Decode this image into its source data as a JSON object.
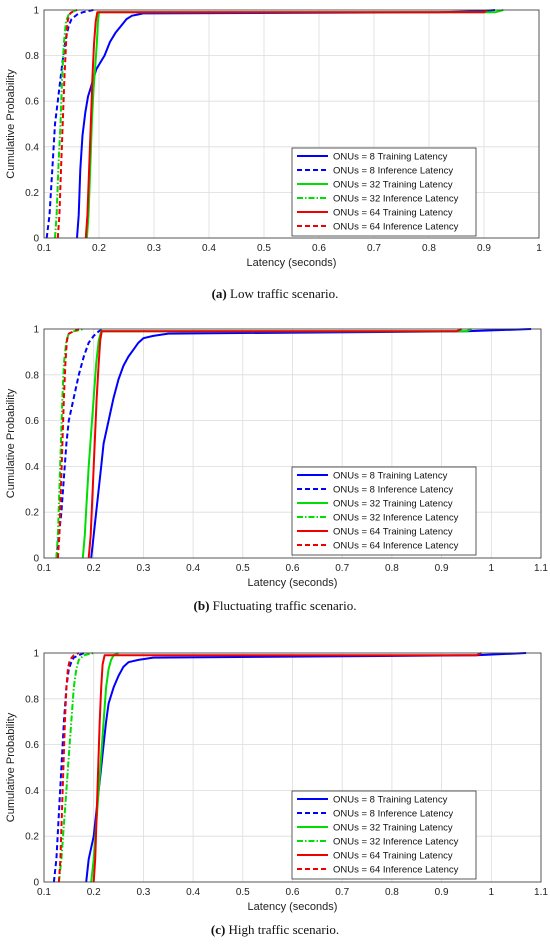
{
  "chart_data": [
    {
      "type": "line",
      "xlabel": "Latency (seconds)",
      "ylabel": "Cumulative Probability",
      "xlim": [
        0.1,
        1
      ],
      "ylim": [
        0,
        1
      ],
      "xticks": [
        "0.1",
        "0.2",
        "0.3",
        "0.4",
        "0.5",
        "0.6",
        "0.7",
        "0.8",
        "0.9",
        "1"
      ],
      "yticks": [
        "0",
        "0.2",
        "0.4",
        "0.6",
        "0.8",
        "1"
      ],
      "grid": true,
      "legend_position": "bottom-right",
      "caption_label": "(a)",
      "caption_text": " Low traffic scenario.",
      "series": [
        {
          "name": "ONUs = 8 Training Latency",
          "color": "#0000ff",
          "dash": "solid",
          "points": [
            [
              0.16,
              0
            ],
            [
              0.163,
              0.1
            ],
            [
              0.166,
              0.3
            ],
            [
              0.17,
              0.45
            ],
            [
              0.175,
              0.55
            ],
            [
              0.18,
              0.62
            ],
            [
              0.185,
              0.66
            ],
            [
              0.19,
              0.7
            ],
            [
              0.195,
              0.74
            ],
            [
              0.2,
              0.76
            ],
            [
              0.21,
              0.8
            ],
            [
              0.22,
              0.86
            ],
            [
              0.23,
              0.9
            ],
            [
              0.24,
              0.93
            ],
            [
              0.25,
              0.96
            ],
            [
              0.26,
              0.975
            ],
            [
              0.27,
              0.98
            ],
            [
              0.28,
              0.985
            ],
            [
              0.82,
              0.99
            ],
            [
              0.9,
              0.995
            ],
            [
              0.92,
              1
            ]
          ]
        },
        {
          "name": "ONUs = 8 Inference Latency",
          "color": "#0000ff",
          "dash": "dash",
          "points": [
            [
              0.105,
              0
            ],
            [
              0.11,
              0.1
            ],
            [
              0.115,
              0.3
            ],
            [
              0.12,
              0.5
            ],
            [
              0.125,
              0.6
            ],
            [
              0.13,
              0.7
            ],
            [
              0.135,
              0.8
            ],
            [
              0.14,
              0.88
            ],
            [
              0.145,
              0.93
            ],
            [
              0.15,
              0.96
            ],
            [
              0.16,
              0.98
            ],
            [
              0.17,
              0.99
            ],
            [
              0.19,
              1
            ]
          ]
        },
        {
          "name": "ONUs = 32 Training Latency",
          "color": "#00dd00",
          "dash": "solid",
          "points": [
            [
              0.178,
              0
            ],
            [
              0.181,
              0.1
            ],
            [
              0.184,
              0.3
            ],
            [
              0.187,
              0.5
            ],
            [
              0.19,
              0.65
            ],
            [
              0.193,
              0.75
            ],
            [
              0.196,
              0.85
            ],
            [
              0.198,
              0.95
            ],
            [
              0.2,
              0.99
            ],
            [
              0.92,
              0.99
            ],
            [
              0.935,
              1
            ]
          ]
        },
        {
          "name": "ONUs = 32 Inference Latency",
          "color": "#00dd00",
          "dash": "dashdot",
          "points": [
            [
              0.12,
              0
            ],
            [
              0.123,
              0.1
            ],
            [
              0.126,
              0.3
            ],
            [
              0.13,
              0.5
            ],
            [
              0.133,
              0.7
            ],
            [
              0.136,
              0.85
            ],
            [
              0.14,
              0.95
            ],
            [
              0.145,
              0.98
            ],
            [
              0.15,
              0.99
            ],
            [
              0.16,
              1
            ]
          ]
        },
        {
          "name": "ONUs = 64 Training Latency",
          "color": "#ee0000",
          "dash": "solid",
          "points": [
            [
              0.176,
              0
            ],
            [
              0.179,
              0.1
            ],
            [
              0.182,
              0.3
            ],
            [
              0.185,
              0.5
            ],
            [
              0.188,
              0.7
            ],
            [
              0.191,
              0.85
            ],
            [
              0.194,
              0.95
            ],
            [
              0.197,
              0.99
            ],
            [
              0.9,
              0.99
            ],
            [
              0.905,
              1
            ]
          ]
        },
        {
          "name": "ONUs = 64 Inference Latency",
          "color": "#ee0000",
          "dash": "dash",
          "points": [
            [
              0.125,
              0
            ],
            [
              0.128,
              0.1
            ],
            [
              0.131,
              0.3
            ],
            [
              0.134,
              0.5
            ],
            [
              0.137,
              0.7
            ],
            [
              0.14,
              0.85
            ],
            [
              0.143,
              0.95
            ],
            [
              0.146,
              0.98
            ],
            [
              0.15,
              0.99
            ],
            [
              0.16,
              1
            ]
          ]
        }
      ]
    },
    {
      "type": "line",
      "xlabel": "Latency (seconds)",
      "ylabel": "Cumulative Probability",
      "xlim": [
        0.1,
        1.1
      ],
      "ylim": [
        0,
        1
      ],
      "xticks": [
        "0.1",
        "0.2",
        "0.3",
        "0.4",
        "0.5",
        "0.6",
        "0.7",
        "0.8",
        "0.9",
        "1",
        "1.1"
      ],
      "yticks": [
        "0",
        "0.2",
        "0.4",
        "0.6",
        "0.8",
        "1"
      ],
      "grid": true,
      "legend_position": "bottom-right",
      "caption_label": "(b)",
      "caption_text": " Fluctuating traffic scenario.",
      "series": [
        {
          "name": "ONUs = 8 Training Latency",
          "color": "#0000ff",
          "dash": "solid",
          "points": [
            [
              0.195,
              0
            ],
            [
              0.2,
              0.1
            ],
            [
              0.205,
              0.2
            ],
            [
              0.21,
              0.3
            ],
            [
              0.215,
              0.4
            ],
            [
              0.22,
              0.5
            ],
            [
              0.23,
              0.6
            ],
            [
              0.24,
              0.7
            ],
            [
              0.25,
              0.78
            ],
            [
              0.26,
              0.84
            ],
            [
              0.27,
              0.88
            ],
            [
              0.28,
              0.91
            ],
            [
              0.29,
              0.94
            ],
            [
              0.3,
              0.96
            ],
            [
              0.32,
              0.97
            ],
            [
              0.35,
              0.98
            ],
            [
              0.95,
              0.99
            ],
            [
              1.08,
              1
            ]
          ]
        },
        {
          "name": "ONUs = 8 Inference Latency",
          "color": "#0000ff",
          "dash": "dash",
          "points": [
            [
              0.125,
              0
            ],
            [
              0.13,
              0.1
            ],
            [
              0.135,
              0.2
            ],
            [
              0.14,
              0.35
            ],
            [
              0.145,
              0.5
            ],
            [
              0.15,
              0.6
            ],
            [
              0.16,
              0.7
            ],
            [
              0.17,
              0.8
            ],
            [
              0.18,
              0.88
            ],
            [
              0.19,
              0.94
            ],
            [
              0.2,
              0.97
            ],
            [
              0.21,
              0.99
            ],
            [
              0.22,
              1
            ]
          ]
        },
        {
          "name": "ONUs = 32 Training Latency",
          "color": "#00dd00",
          "dash": "solid",
          "points": [
            [
              0.178,
              0
            ],
            [
              0.182,
              0.1
            ],
            [
              0.186,
              0.25
            ],
            [
              0.19,
              0.4
            ],
            [
              0.195,
              0.55
            ],
            [
              0.2,
              0.7
            ],
            [
              0.205,
              0.85
            ],
            [
              0.21,
              0.95
            ],
            [
              0.215,
              0.99
            ],
            [
              0.95,
              0.99
            ],
            [
              0.96,
              1
            ]
          ]
        },
        {
          "name": "ONUs = 32 Inference Latency",
          "color": "#00dd00",
          "dash": "dashdot",
          "points": [
            [
              0.125,
              0
            ],
            [
              0.128,
              0.1
            ],
            [
              0.131,
              0.3
            ],
            [
              0.134,
              0.5
            ],
            [
              0.137,
              0.7
            ],
            [
              0.14,
              0.85
            ],
            [
              0.145,
              0.95
            ],
            [
              0.15,
              0.98
            ],
            [
              0.16,
              0.99
            ],
            [
              0.18,
              1
            ]
          ]
        },
        {
          "name": "ONUs = 64 Training Latency",
          "color": "#ee0000",
          "dash": "solid",
          "points": [
            [
              0.19,
              0
            ],
            [
              0.194,
              0.1
            ],
            [
              0.198,
              0.3
            ],
            [
              0.202,
              0.5
            ],
            [
              0.206,
              0.7
            ],
            [
              0.21,
              0.85
            ],
            [
              0.213,
              0.95
            ],
            [
              0.216,
              0.99
            ],
            [
              0.93,
              0.99
            ],
            [
              0.94,
              1
            ]
          ]
        },
        {
          "name": "ONUs = 64 Inference Latency",
          "color": "#ee0000",
          "dash": "dash",
          "points": [
            [
              0.128,
              0
            ],
            [
              0.131,
              0.1
            ],
            [
              0.134,
              0.3
            ],
            [
              0.137,
              0.5
            ],
            [
              0.14,
              0.7
            ],
            [
              0.143,
              0.85
            ],
            [
              0.146,
              0.95
            ],
            [
              0.15,
              0.98
            ],
            [
              0.16,
              0.99
            ],
            [
              0.17,
              1
            ]
          ]
        }
      ]
    },
    {
      "type": "line",
      "xlabel": "Latency (seconds)",
      "ylabel": "Cumulative Probability",
      "xlim": [
        0.1,
        1.1
      ],
      "ylim": [
        0,
        1
      ],
      "xticks": [
        "0.1",
        "0.2",
        "0.3",
        "0.4",
        "0.5",
        "0.6",
        "0.7",
        "0.8",
        "0.9",
        "1",
        "1.1"
      ],
      "yticks": [
        "0",
        "0.2",
        "0.4",
        "0.6",
        "0.8",
        "1"
      ],
      "grid": true,
      "legend_position": "bottom-right",
      "caption_label": "(c)",
      "caption_text": " High traffic scenario.",
      "series": [
        {
          "name": "ONUs = 8 Training Latency",
          "color": "#0000ff",
          "dash": "solid",
          "points": [
            [
              0.185,
              0
            ],
            [
              0.19,
              0.1
            ],
            [
              0.2,
              0.2
            ],
            [
              0.205,
              0.3
            ],
            [
              0.21,
              0.4
            ],
            [
              0.215,
              0.5
            ],
            [
              0.22,
              0.6
            ],
            [
              0.225,
              0.7
            ],
            [
              0.23,
              0.78
            ],
            [
              0.24,
              0.85
            ],
            [
              0.25,
              0.9
            ],
            [
              0.26,
              0.94
            ],
            [
              0.27,
              0.96
            ],
            [
              0.29,
              0.97
            ],
            [
              0.32,
              0.98
            ],
            [
              0.97,
              0.99
            ],
            [
              1.07,
              1
            ]
          ]
        },
        {
          "name": "ONUs = 8 Inference Latency",
          "color": "#0000ff",
          "dash": "dash",
          "points": [
            [
              0.12,
              0
            ],
            [
              0.125,
              0.1
            ],
            [
              0.13,
              0.3
            ],
            [
              0.135,
              0.5
            ],
            [
              0.14,
              0.7
            ],
            [
              0.145,
              0.85
            ],
            [
              0.15,
              0.93
            ],
            [
              0.155,
              0.96
            ],
            [
              0.16,
              0.98
            ],
            [
              0.17,
              0.99
            ],
            [
              0.18,
              1
            ]
          ]
        },
        {
          "name": "ONUs = 32 Training Latency",
          "color": "#00dd00",
          "dash": "solid",
          "points": [
            [
              0.195,
              0
            ],
            [
              0.2,
              0.1
            ],
            [
              0.205,
              0.25
            ],
            [
              0.21,
              0.4
            ],
            [
              0.215,
              0.55
            ],
            [
              0.22,
              0.7
            ],
            [
              0.225,
              0.85
            ],
            [
              0.23,
              0.93
            ],
            [
              0.235,
              0.97
            ],
            [
              0.24,
              0.99
            ],
            [
              0.25,
              1
            ]
          ]
        },
        {
          "name": "ONUs = 32 Inference Latency",
          "color": "#00dd00",
          "dash": "dashdot",
          "points": [
            [
              0.13,
              0
            ],
            [
              0.135,
              0.1
            ],
            [
              0.14,
              0.25
            ],
            [
              0.145,
              0.4
            ],
            [
              0.15,
              0.55
            ],
            [
              0.155,
              0.7
            ],
            [
              0.16,
              0.85
            ],
            [
              0.165,
              0.93
            ],
            [
              0.17,
              0.97
            ],
            [
              0.18,
              0.99
            ],
            [
              0.2,
              1
            ]
          ]
        },
        {
          "name": "ONUs = 64 Training Latency",
          "color": "#ee0000",
          "dash": "solid",
          "points": [
            [
              0.2,
              0
            ],
            [
              0.203,
              0.1
            ],
            [
              0.206,
              0.3
            ],
            [
              0.209,
              0.5
            ],
            [
              0.212,
              0.7
            ],
            [
              0.215,
              0.85
            ],
            [
              0.218,
              0.95
            ],
            [
              0.222,
              0.99
            ],
            [
              0.97,
              0.99
            ],
            [
              0.98,
              1
            ]
          ]
        },
        {
          "name": "ONUs = 64 Inference Latency",
          "color": "#ee0000",
          "dash": "dash",
          "points": [
            [
              0.13,
              0
            ],
            [
              0.133,
              0.1
            ],
            [
              0.136,
              0.3
            ],
            [
              0.139,
              0.5
            ],
            [
              0.142,
              0.7
            ],
            [
              0.145,
              0.85
            ],
            [
              0.148,
              0.93
            ],
            [
              0.152,
              0.97
            ],
            [
              0.16,
              0.99
            ],
            [
              0.17,
              1
            ]
          ]
        }
      ]
    }
  ]
}
